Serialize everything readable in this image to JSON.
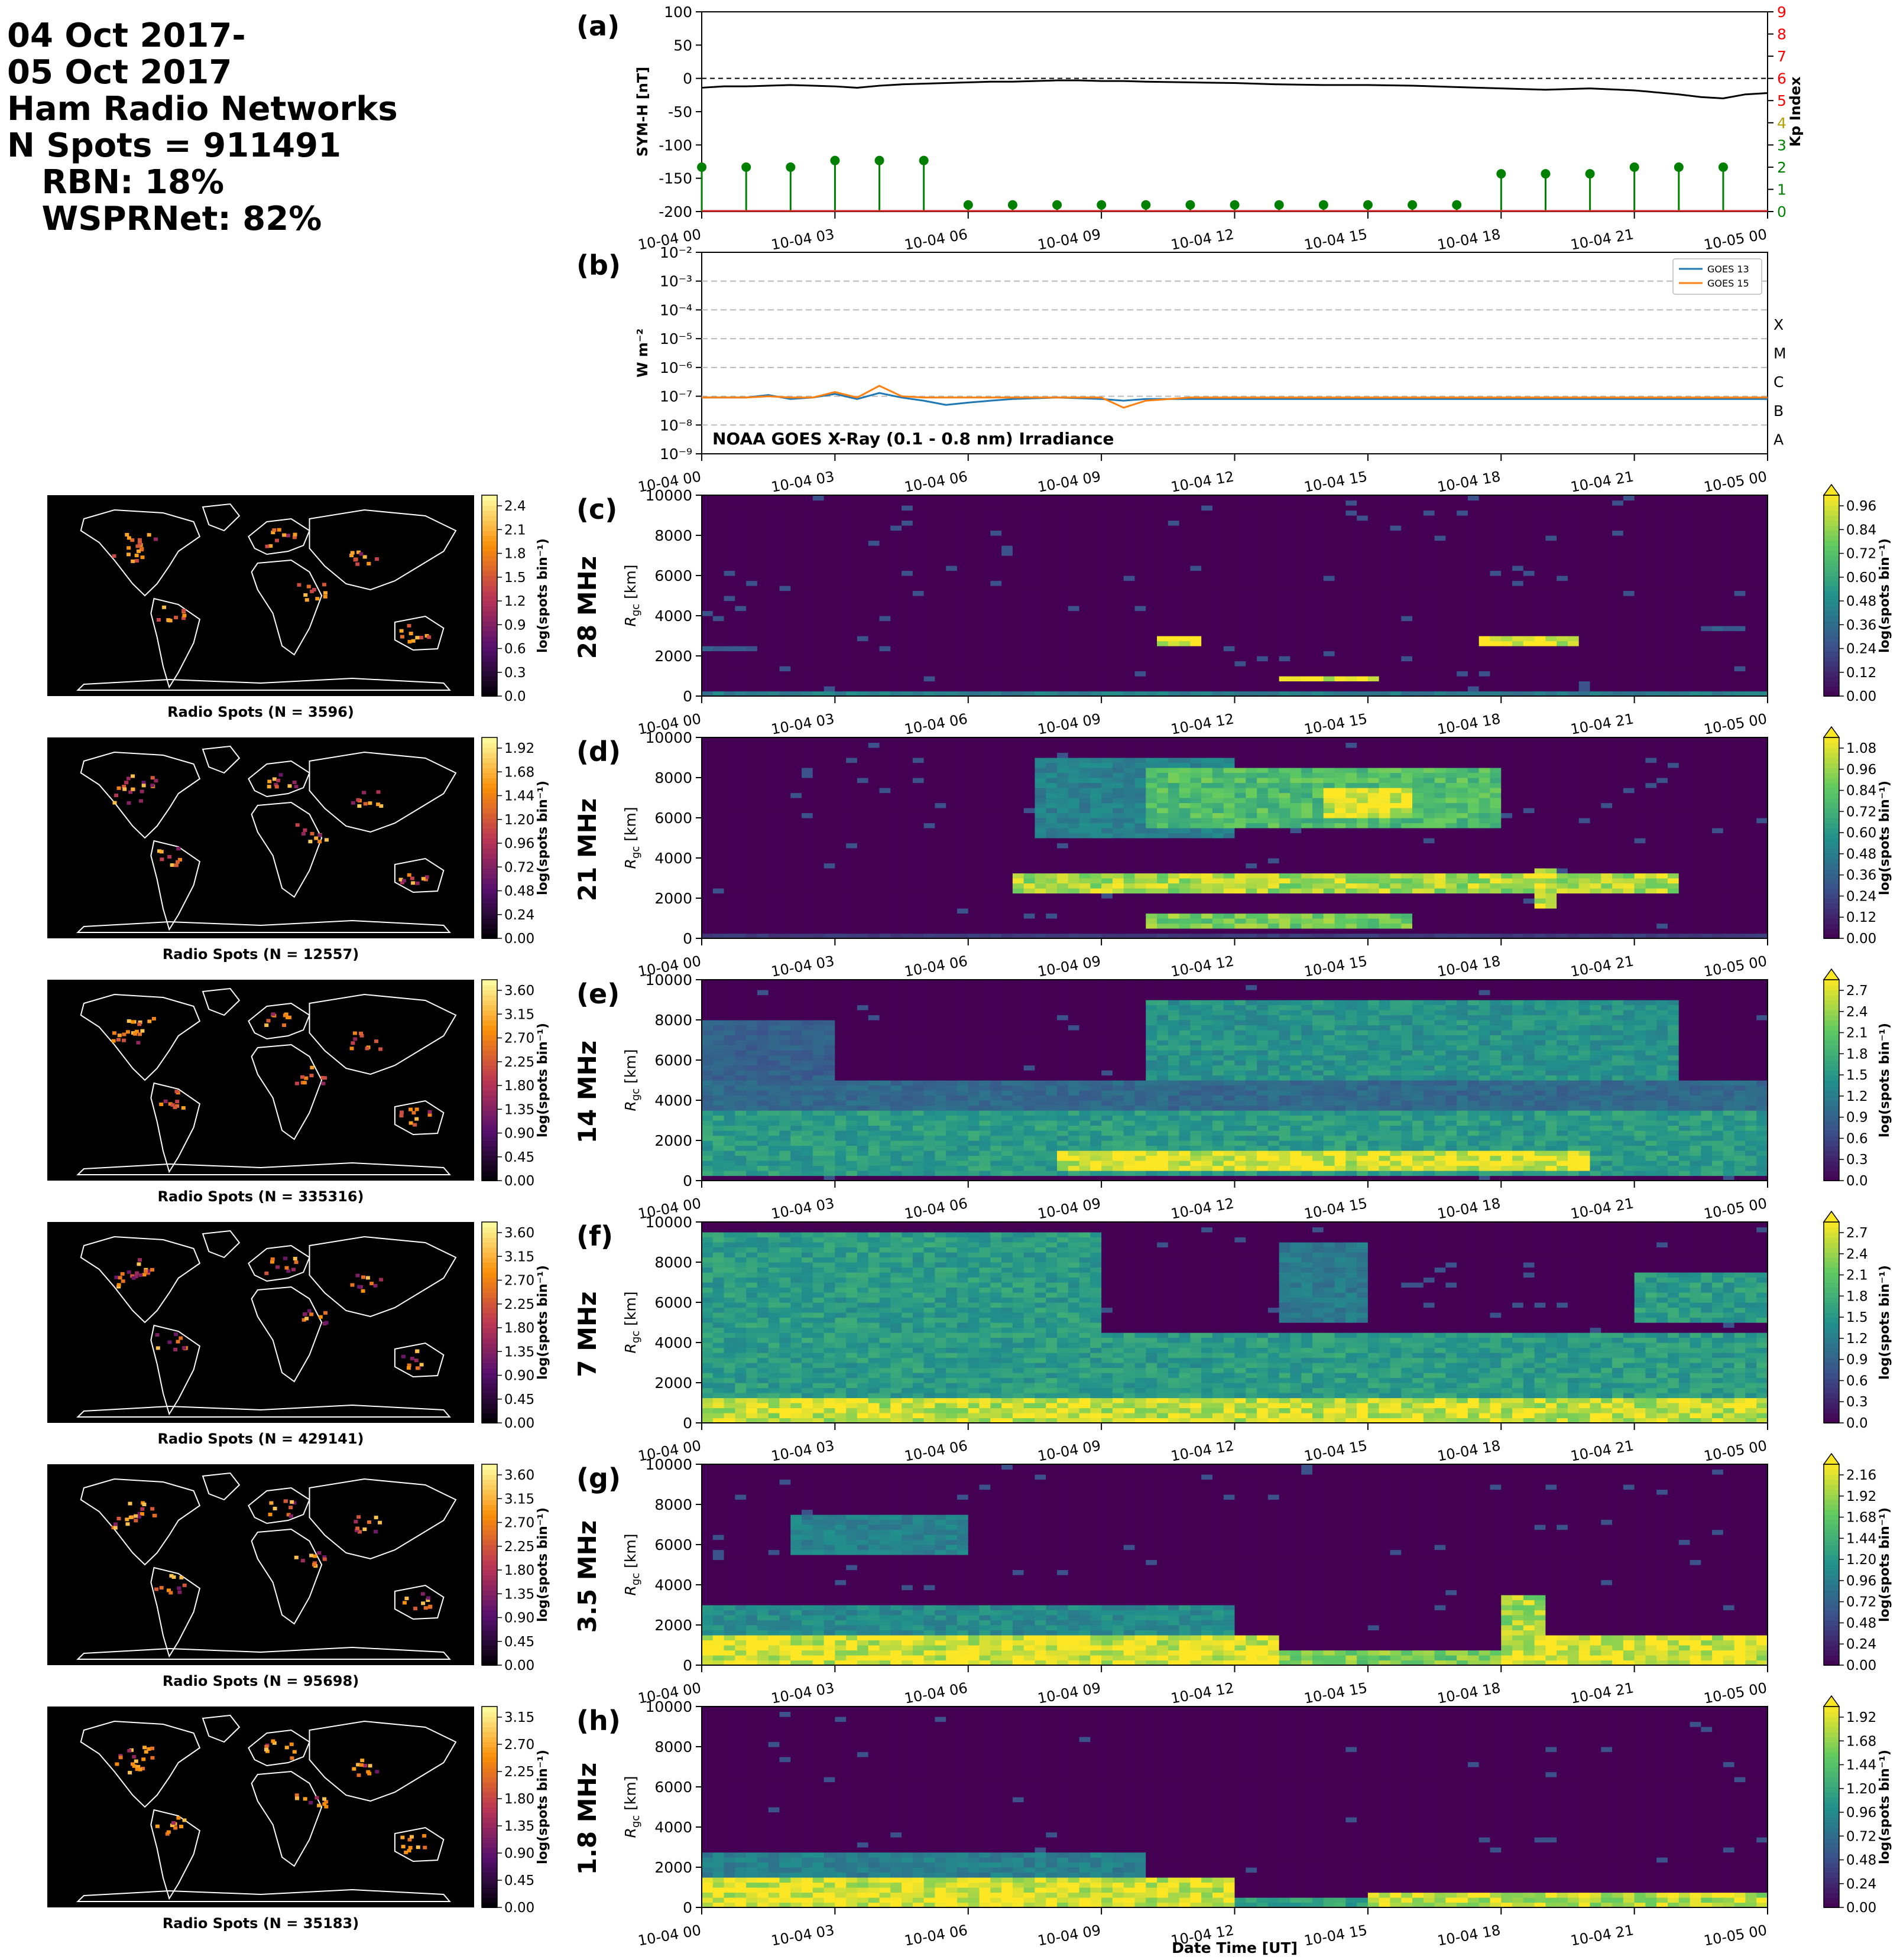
{
  "header": {
    "lines": [
      "04 Oct 2017-",
      "05 Oct 2017",
      "Ham Radio Networks",
      "N Spots = 911491",
      "   RBN: 18%",
      "   WSPRNet: 82%"
    ]
  },
  "time_ticks": [
    "10-04 00",
    "10-04 03",
    "10-04 06",
    "10-04 09",
    "10-04 12",
    "10-04 15",
    "10-04 18",
    "10-04 21",
    "10-05 00"
  ],
  "xlabel": "Date Time [UT]",
  "colors": {
    "black": "#000000",
    "kp": "#008000",
    "goes13": "#1f77b4",
    "goes15": "#ff7f0e",
    "kp_axis": "#ff0000"
  },
  "chart_data": [
    {
      "type": "line",
      "panel_label": "(a)",
      "ylabel": "SYM-H [nT]",
      "ylim": [
        -200,
        100
      ],
      "yticks": [
        100,
        50,
        0,
        -50,
        -100,
        -150,
        -200
      ],
      "x_hours": [
        0,
        0.5,
        1,
        1.5,
        2,
        2.5,
        3,
        3.5,
        4,
        4.5,
        5,
        5.5,
        6,
        6.5,
        7,
        7.5,
        8,
        8.5,
        9,
        9.5,
        10,
        11,
        12,
        13,
        14,
        15,
        16,
        17,
        18,
        19,
        20,
        21,
        22,
        22.5,
        23,
        23.5,
        24
      ],
      "series": [
        {
          "values": [
            -14,
            -12,
            -12,
            -11,
            -10,
            -11,
            -12,
            -14,
            -11,
            -9,
            -8,
            -7,
            -6,
            -5,
            -5,
            -4,
            -3,
            -3,
            -4,
            -4,
            -5,
            -6,
            -7,
            -9,
            -10,
            -10,
            -11,
            -13,
            -15,
            -17,
            -15,
            -18,
            -24,
            -28,
            -30,
            -24,
            -22
          ]
        }
      ],
      "kp": {
        "ylabel": "Kp Index",
        "ylim": [
          0,
          9
        ],
        "yticks": [
          0,
          1,
          2,
          3,
          4,
          5,
          6,
          7,
          8,
          9
        ],
        "x_hours": [
          0,
          1,
          2,
          3,
          4,
          5,
          6,
          7,
          8,
          9,
          10,
          11,
          12,
          13,
          14,
          15,
          16,
          17,
          18,
          19,
          20,
          21,
          22,
          23
        ],
        "values": [
          2,
          2,
          2,
          2.3,
          2.3,
          2.3,
          0.3,
          0.3,
          0.3,
          0.3,
          0.3,
          0.3,
          0.3,
          0.3,
          0.3,
          0.3,
          0.3,
          0.3,
          1.7,
          1.7,
          1.7,
          2,
          2,
          2
        ]
      }
    },
    {
      "type": "line",
      "panel_label": "(b)",
      "ylabel": "W m⁻²",
      "scale": "log",
      "ylim": [
        1e-09,
        0.01
      ],
      "yticks": [
        "10⁻²",
        "10⁻³",
        "10⁻⁴",
        "10⁻⁵",
        "10⁻⁶",
        "10⁻⁷",
        "10⁻⁸",
        "10⁻⁹"
      ],
      "classes": [
        "X",
        "M",
        "C",
        "B",
        "A"
      ],
      "annotation": "NOAA GOES X-Ray (0.1 - 0.8 nm) Irradiance",
      "x_hours": [
        0,
        1,
        1.5,
        2,
        2.5,
        3,
        3.5,
        4,
        4.5,
        5,
        5.5,
        6,
        6.5,
        7,
        8,
        9,
        9.5,
        10,
        11,
        12,
        13,
        14,
        15,
        16,
        17,
        18,
        19,
        20,
        21,
        22,
        23,
        24
      ],
      "series": [
        {
          "name": "GOES 13",
          "values": [
            9e-08,
            9e-08,
            1.1e-07,
            8e-08,
            9e-08,
            1.2e-07,
            8e-08,
            1.3e-07,
            9e-08,
            7e-08,
            5e-08,
            6e-08,
            7e-08,
            8e-08,
            9e-08,
            8e-08,
            7e-08,
            8e-08,
            8e-08,
            8e-08,
            8e-08,
            8e-08,
            8e-08,
            8e-08,
            8e-08,
            8e-08,
            8e-08,
            8e-08,
            8e-08,
            8e-08,
            8e-08,
            8e-08
          ]
        },
        {
          "name": "GOES 15",
          "values": [
            9e-08,
            9e-08,
            1e-07,
            9e-08,
            9e-08,
            1.4e-07,
            9e-08,
            2.3e-07,
            1e-07,
            9e-08,
            9e-08,
            9e-08,
            9e-08,
            9e-08,
            9e-08,
            9e-08,
            4e-08,
            7e-08,
            9e-08,
            9e-08,
            9e-08,
            9e-08,
            9e-08,
            9e-08,
            9e-08,
            9e-08,
            9e-08,
            9e-08,
            9e-08,
            9e-08,
            9e-08,
            9e-08
          ]
        }
      ]
    },
    {
      "type": "heatmap",
      "panel_label": "(c)",
      "band": "28 MHz",
      "ylabel": "R_gc [km]",
      "ylim": [
        0,
        10000
      ],
      "yticks": [
        0,
        2000,
        4000,
        6000,
        8000,
        10000
      ],
      "colorbar": {
        "label": "log(spots bin⁻¹)",
        "ticks": [
          "0.00",
          "0.12",
          "0.24",
          "0.36",
          "0.48",
          "0.60",
          "0.72",
          "0.84",
          "0.96"
        ],
        "vmax": 1.0
      },
      "map": {
        "caption": "Radio Spots (N = 3596)",
        "colorbar_ticks": [
          "0.0",
          "0.3",
          "0.6",
          "0.9",
          "1.2",
          "1.5",
          "1.8",
          "2.1",
          "2.4"
        ],
        "colorbar_label": "log(spots bin⁻¹)"
      },
      "features": [
        {
          "t": [
            0,
            24
          ],
          "r": [
            0,
            150
          ],
          "v": 0.45
        },
        {
          "t": [
            10.2,
            11.2
          ],
          "r": [
            2600,
            3000
          ],
          "v": 1.0
        },
        {
          "t": [
            13,
            15.2
          ],
          "r": [
            700,
            1100
          ],
          "v": 1.0
        },
        {
          "t": [
            17.5,
            19.8
          ],
          "r": [
            2600,
            2900
          ],
          "v": 1.0
        },
        {
          "t": [
            0,
            1.2
          ],
          "r": [
            2200,
            2600
          ],
          "v": 0.3
        },
        {
          "t": [
            22.5,
            23.5
          ],
          "r": [
            3200,
            3500
          ],
          "v": 0.3
        }
      ]
    },
    {
      "type": "heatmap",
      "panel_label": "(d)",
      "band": "21 MHz",
      "ylabel": "R_gc [km]",
      "ylim": [
        0,
        10000
      ],
      "yticks": [
        0,
        2000,
        4000,
        6000,
        8000,
        10000
      ],
      "colorbar": {
        "label": "log(spots bin⁻¹)",
        "ticks": [
          "0.00",
          "0.12",
          "0.24",
          "0.36",
          "0.48",
          "0.60",
          "0.72",
          "0.84",
          "0.96",
          "1.08"
        ],
        "vmax": 1.1
      },
      "map": {
        "caption": "Radio Spots (N = 12557)",
        "colorbar_ticks": [
          "0.00",
          "0.24",
          "0.48",
          "0.72",
          "0.96",
          "1.20",
          "1.44",
          "1.68",
          "1.92"
        ],
        "colorbar_label": "log(spots bin⁻¹)"
      },
      "features": [
        {
          "t": [
            7,
            22
          ],
          "r": [
            2200,
            3200
          ],
          "v": 1.0
        },
        {
          "t": [
            10,
            18
          ],
          "r": [
            5500,
            8500
          ],
          "v": 0.8
        },
        {
          "t": [
            14,
            16
          ],
          "r": [
            6000,
            7500
          ],
          "v": 1.1
        },
        {
          "t": [
            7.5,
            12
          ],
          "r": [
            5000,
            9000
          ],
          "v": 0.5
        },
        {
          "t": [
            10,
            16
          ],
          "r": [
            500,
            1200
          ],
          "v": 0.9
        },
        {
          "t": [
            18.7,
            19.3
          ],
          "r": [
            1500,
            3600
          ],
          "v": 1.1
        },
        {
          "t": [
            0,
            24
          ],
          "r": [
            0,
            150
          ],
          "v": 0.2
        }
      ]
    },
    {
      "type": "heatmap",
      "panel_label": "(e)",
      "band": "14 MHz",
      "ylabel": "R_gc [km]",
      "ylim": [
        0,
        10000
      ],
      "yticks": [
        0,
        2000,
        4000,
        6000,
        8000,
        10000
      ],
      "colorbar": {
        "label": "log(spots bin⁻¹)",
        "ticks": [
          "0.0",
          "0.3",
          "0.6",
          "0.9",
          "1.2",
          "1.5",
          "1.8",
          "2.1",
          "2.4",
          "2.7"
        ],
        "vmax": 2.8
      },
      "map": {
        "caption": "Radio Spots (N = 335316)",
        "colorbar_ticks": [
          "0.00",
          "0.45",
          "0.90",
          "1.35",
          "1.80",
          "2.25",
          "2.70",
          "3.15",
          "3.60"
        ],
        "colorbar_label": "log(spots bin⁻¹)"
      },
      "features": [
        {
          "t": [
            0,
            24
          ],
          "r": [
            300,
            3600
          ],
          "v": 1.6
        },
        {
          "t": [
            8,
            20
          ],
          "r": [
            500,
            1400
          ],
          "v": 2.8
        },
        {
          "t": [
            10,
            22
          ],
          "r": [
            5000,
            9000
          ],
          "v": 1.5
        },
        {
          "t": [
            0,
            3
          ],
          "r": [
            5000,
            8000
          ],
          "v": 0.9
        },
        {
          "t": [
            0,
            24
          ],
          "r": [
            3500,
            5000
          ],
          "v": 1.0
        }
      ]
    },
    {
      "type": "heatmap",
      "panel_label": "(f)",
      "band": "7 MHz",
      "ylabel": "R_gc [km]",
      "ylim": [
        0,
        10000
      ],
      "yticks": [
        0,
        2000,
        4000,
        6000,
        8000,
        10000
      ],
      "colorbar": {
        "label": "log(spots bin⁻¹)",
        "ticks": [
          "0.0",
          "0.3",
          "0.6",
          "0.9",
          "1.2",
          "1.5",
          "1.8",
          "2.1",
          "2.4",
          "2.7"
        ],
        "vmax": 2.8
      },
      "map": {
        "caption": "Radio Spots (N = 429141)",
        "colorbar_ticks": [
          "0.00",
          "0.45",
          "0.90",
          "1.35",
          "1.80",
          "2.25",
          "2.70",
          "3.15",
          "3.60"
        ],
        "colorbar_label": "log(spots bin⁻¹)"
      },
      "features": [
        {
          "t": [
            0,
            24
          ],
          "r": [
            0,
            1200
          ],
          "v": 2.7
        },
        {
          "t": [
            0,
            24
          ],
          "r": [
            1200,
            4500
          ],
          "v": 1.6
        },
        {
          "t": [
            0,
            9
          ],
          "r": [
            4500,
            9500
          ],
          "v": 1.6
        },
        {
          "t": [
            21,
            24
          ],
          "r": [
            5000,
            7500
          ],
          "v": 1.6
        },
        {
          "t": [
            13,
            15
          ],
          "r": [
            5000,
            9000
          ],
          "v": 1.2
        }
      ]
    },
    {
      "type": "heatmap",
      "panel_label": "(g)",
      "band": "3.5 MHz",
      "ylabel": "R_gc [km]",
      "ylim": [
        0,
        10000
      ],
      "yticks": [
        0,
        2000,
        4000,
        6000,
        8000,
        10000
      ],
      "colorbar": {
        "label": "log(spots bin⁻¹)",
        "ticks": [
          "0.00",
          "0.24",
          "0.48",
          "0.72",
          "0.96",
          "1.20",
          "1.44",
          "1.68",
          "1.92",
          "2.16"
        ],
        "vmax": 2.2
      },
      "map": {
        "caption": "Radio Spots (N = 95698)",
        "colorbar_ticks": [
          "0.00",
          "0.45",
          "0.90",
          "1.35",
          "1.80",
          "2.25",
          "2.70",
          "3.15",
          "3.60"
        ],
        "colorbar_label": "log(spots bin⁻¹)"
      },
      "features": [
        {
          "t": [
            0,
            13
          ],
          "r": [
            0,
            1500
          ],
          "v": 2.2
        },
        {
          "t": [
            18,
            24
          ],
          "r": [
            0,
            1500
          ],
          "v": 2.2
        },
        {
          "t": [
            13,
            18
          ],
          "r": [
            0,
            800
          ],
          "v": 1.8
        },
        {
          "t": [
            0,
            12
          ],
          "r": [
            1500,
            3000
          ],
          "v": 1.1
        },
        {
          "t": [
            2,
            6
          ],
          "r": [
            5500,
            7500
          ],
          "v": 1.0
        },
        {
          "t": [
            18,
            19
          ],
          "r": [
            1500,
            3500
          ],
          "v": 2.0
        }
      ]
    },
    {
      "type": "heatmap",
      "panel_label": "(h)",
      "band": "1.8 MHz",
      "ylabel": "R_gc [km]",
      "ylim": [
        0,
        10000
      ],
      "yticks": [
        0,
        2000,
        4000,
        6000,
        8000,
        10000
      ],
      "colorbar": {
        "label": "log(spots bin⁻¹)",
        "ticks": [
          "0.00",
          "0.24",
          "0.48",
          "0.72",
          "0.96",
          "1.20",
          "1.44",
          "1.68",
          "1.92"
        ],
        "vmax": 2.0
      },
      "map": {
        "caption": "Radio Spots (N = 35183)",
        "colorbar_ticks": [
          "0.00",
          "0.45",
          "0.90",
          "1.35",
          "1.80",
          "2.25",
          "2.70",
          "3.15"
        ],
        "colorbar_label": "log(spots bin⁻¹)"
      },
      "features": [
        {
          "t": [
            0,
            12
          ],
          "r": [
            0,
            1500
          ],
          "v": 2.0
        },
        {
          "t": [
            15,
            24
          ],
          "r": [
            0,
            800
          ],
          "v": 1.9
        },
        {
          "t": [
            0,
            10
          ],
          "r": [
            1500,
            2800
          ],
          "v": 0.9
        },
        {
          "t": [
            12,
            15
          ],
          "r": [
            0,
            400
          ],
          "v": 1.2
        }
      ]
    }
  ]
}
